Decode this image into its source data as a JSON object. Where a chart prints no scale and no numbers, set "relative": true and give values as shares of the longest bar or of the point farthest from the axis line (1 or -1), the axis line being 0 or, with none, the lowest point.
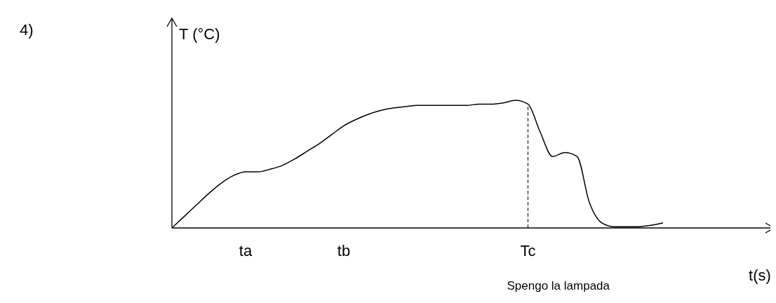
{
  "chart_data": {
    "type": "line",
    "title": "4)",
    "xlabel": "t(s)",
    "ylabel": "T (°C)",
    "relative": true,
    "grid": false,
    "marker": "none",
    "line_style": "solid",
    "categories": [
      null,
      null,
      null,
      null,
      null,
      null,
      "ta",
      null,
      null,
      null,
      null,
      null,
      null,
      null,
      "tb",
      null,
      null,
      null,
      null,
      null,
      null,
      null,
      null,
      null,
      null,
      null,
      null,
      null,
      null,
      "Tc",
      null,
      null,
      null,
      null,
      null,
      null,
      null,
      null,
      null,
      null,
      null,
      null,
      null,
      null,
      null,
      null,
      null,
      null,
      null
    ],
    "series": [
      {
        "color": "#000000",
        "values": [
          0,
          0.09,
          0.18,
          0.27,
          0.35,
          0.41,
          0.44,
          0.44,
          0.46,
          0.49,
          0.54,
          0.6,
          0.66,
          0.73,
          0.8,
          0.85,
          0.89,
          0.92,
          0.94,
          0.95,
          0.96,
          0.96,
          0.96,
          0.96,
          0.96,
          0.97,
          0.97,
          0.98,
          1,
          0.97,
          0.75,
          0.56,
          0.59,
          0.56,
          0.2,
          0.04,
          0.01,
          0.01,
          0.01,
          0.02,
          0.04,
          null,
          null,
          null,
          null,
          null,
          null,
          null,
          null
        ]
      }
    ],
    "ref_lines": [
      {
        "axis": "x",
        "value": "Tc",
        "label": null,
        "color": "#000000",
        "line_style": "dashed"
      }
    ],
    "annotations": [
      "Spengo la lampada"
    ]
  }
}
